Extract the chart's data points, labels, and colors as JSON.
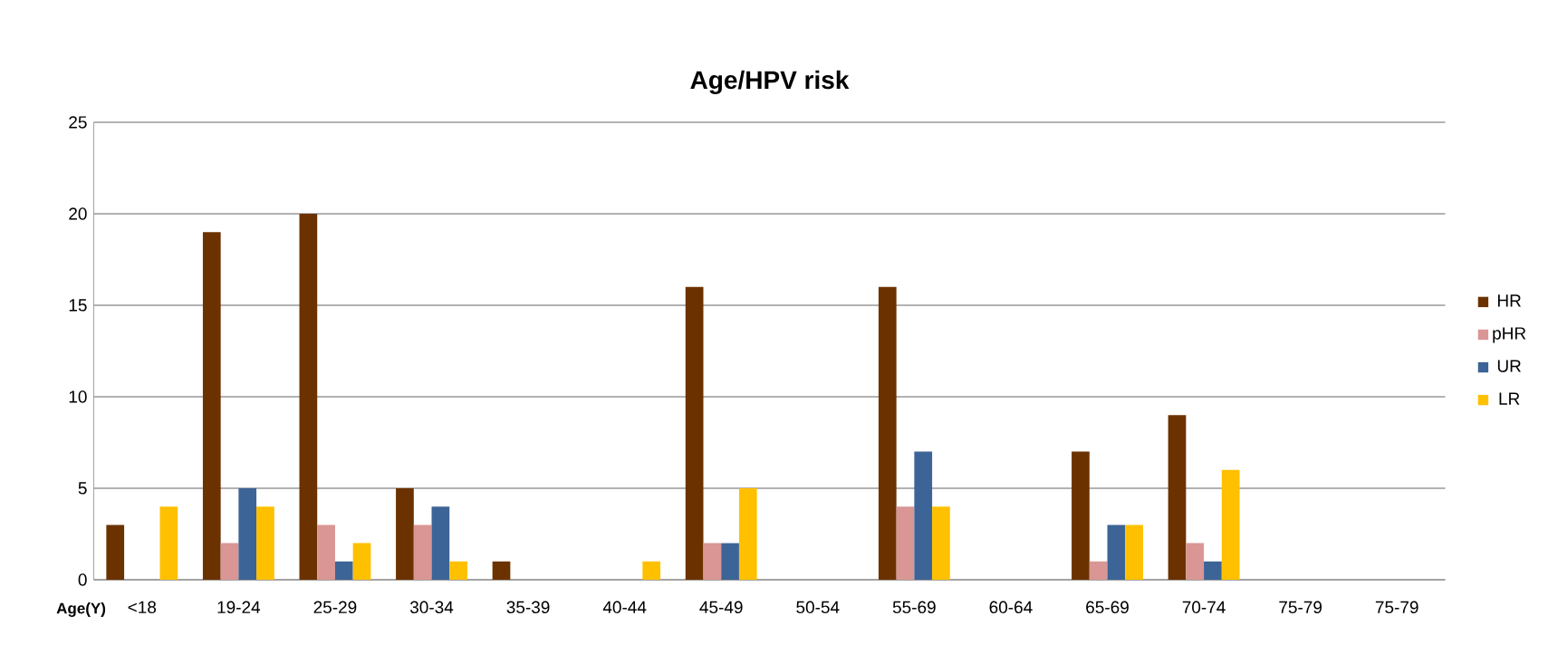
{
  "chart_data": {
    "type": "bar",
    "title": "Age/HPV risk",
    "xlabel": "Age(Y)",
    "categories": [
      "<18",
      "19-24",
      "25-29",
      "30-34",
      "35-39",
      "40-44",
      "45-49",
      "50-54",
      "55-69",
      "60-64",
      "65-69",
      "70-74",
      "75-79",
      "75-79"
    ],
    "series": [
      {
        "name": "HR",
        "color": "#6b3200",
        "values": [
          3,
          19,
          20,
          5,
          1,
          0,
          16,
          0,
          16,
          0,
          7,
          9,
          0,
          0
        ]
      },
      {
        "name": "pHR",
        "color": "#d99694",
        "values": [
          0,
          2,
          3,
          3,
          0,
          0,
          2,
          0,
          4,
          0,
          1,
          2,
          0,
          0
        ]
      },
      {
        "name": "UR",
        "color": "#3c6496",
        "values": [
          0,
          5,
          1,
          4,
          0,
          0,
          2,
          0,
          7,
          0,
          3,
          1,
          0,
          0
        ]
      },
      {
        "name": "LR",
        "color": "#ffc000",
        "values": [
          4,
          4,
          2,
          1,
          0,
          1,
          5,
          0,
          4,
          0,
          3,
          6,
          0,
          0
        ]
      }
    ],
    "ylim": [
      0,
      25
    ],
    "yticks": [
      0,
      5,
      10,
      15,
      20,
      25
    ],
    "grid": "y",
    "legend": "right"
  }
}
